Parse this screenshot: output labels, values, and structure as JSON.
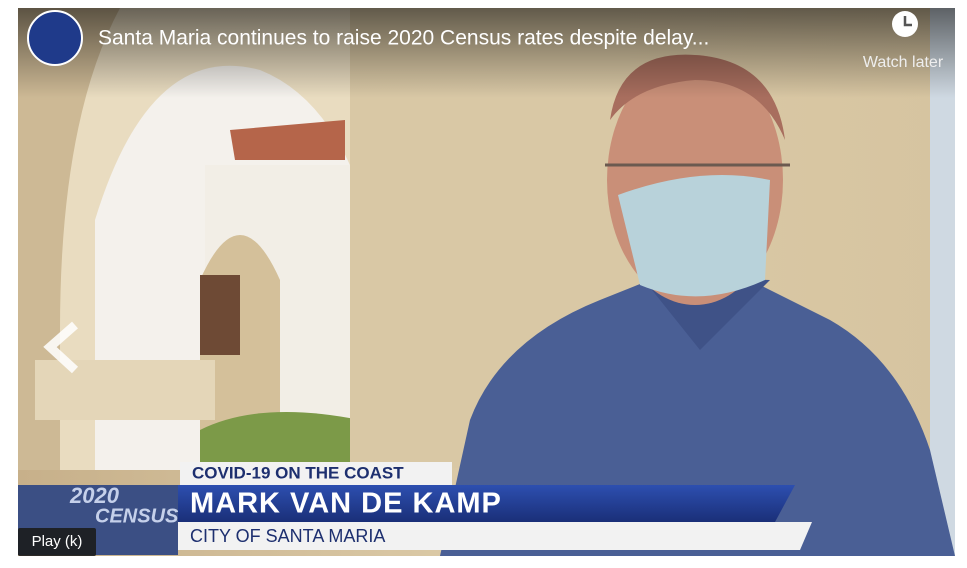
{
  "video": {
    "title": "Santa Maria continues to raise 2020 Census rates despite delay...",
    "watch_later": "Watch later",
    "lower_third": {
      "kicker": "COVID-19 ON THE COAST",
      "name": "MARK VAN DE KAMP",
      "affiliation": "CITY OF SANTA MARIA"
    },
    "graphic": {
      "year": "2020",
      "word": "CENSUS"
    },
    "tooltip": "Play (k)"
  }
}
